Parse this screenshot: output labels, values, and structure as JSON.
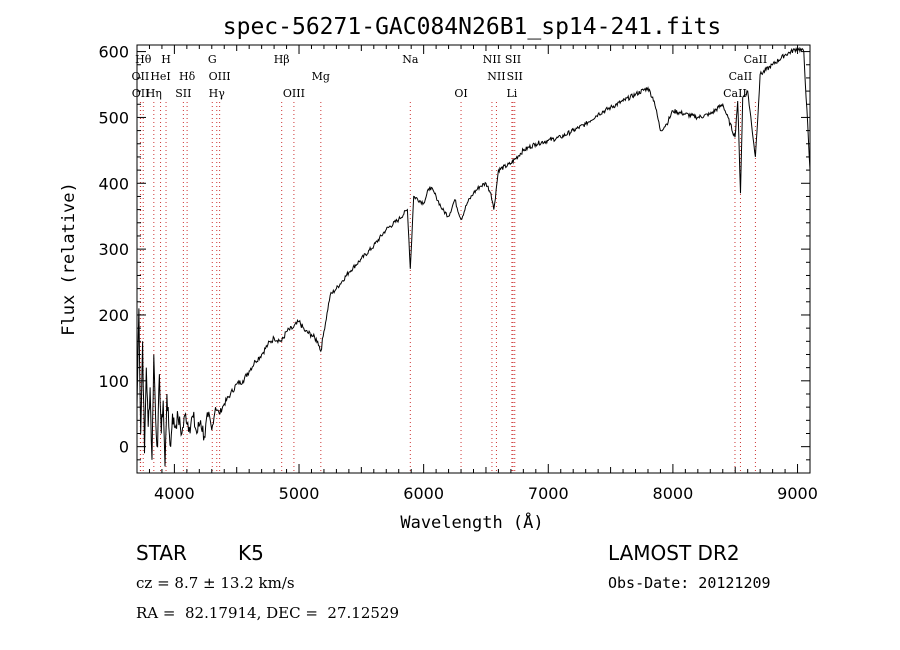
{
  "chart_data": {
    "type": "line",
    "title": "spec-56271-GAC084N26B1_sp14-241.fits",
    "xlabel": "Wavelength (Å)",
    "ylabel": "Flux (relative)",
    "xlim": [
      3700,
      9100
    ],
    "ylim": [
      -40,
      610
    ],
    "x_ticks": [
      4000,
      5000,
      6000,
      7000,
      8000,
      9000
    ],
    "y_ticks": [
      0,
      100,
      200,
      300,
      400,
      500,
      600
    ],
    "grid": false,
    "series": [
      {
        "points": [
          [
            3700,
            60
          ],
          [
            3715,
            210
          ],
          [
            3730,
            20
          ],
          [
            3745,
            160
          ],
          [
            3760,
            -10
          ],
          [
            3775,
            120
          ],
          [
            3790,
            30
          ],
          [
            3805,
            90
          ],
          [
            3820,
            -20
          ],
          [
            3835,
            140
          ],
          [
            3850,
            40
          ],
          [
            3865,
            0
          ],
          [
            3880,
            110
          ],
          [
            3895,
            20
          ],
          [
            3910,
            70
          ],
          [
            3925,
            -30
          ],
          [
            3940,
            80
          ],
          [
            3955,
            30
          ],
          [
            3970,
            0
          ],
          [
            3985,
            50
          ],
          [
            4000,
            30
          ],
          [
            4030,
            45
          ],
          [
            4060,
            20
          ],
          [
            4090,
            50
          ],
          [
            4120,
            30
          ],
          [
            4150,
            45
          ],
          [
            4180,
            20
          ],
          [
            4210,
            40
          ],
          [
            4240,
            15
          ],
          [
            4270,
            45
          ],
          [
            4300,
            25
          ],
          [
            4330,
            60
          ],
          [
            4360,
            50
          ],
          [
            4400,
            65
          ],
          [
            4450,
            80
          ],
          [
            4500,
            95
          ],
          [
            4550,
            100
          ],
          [
            4600,
            115
          ],
          [
            4650,
            130
          ],
          [
            4700,
            140
          ],
          [
            4750,
            155
          ],
          [
            4800,
            165
          ],
          [
            4861,
            160
          ],
          [
            4900,
            175
          ],
          [
            4950,
            180
          ],
          [
            5000,
            190
          ],
          [
            5050,
            175
          ],
          [
            5100,
            170
          ],
          [
            5150,
            160
          ],
          [
            5175,
            145
          ],
          [
            5200,
            175
          ],
          [
            5250,
            230
          ],
          [
            5300,
            240
          ],
          [
            5400,
            265
          ],
          [
            5500,
            285
          ],
          [
            5600,
            305
          ],
          [
            5700,
            330
          ],
          [
            5800,
            345
          ],
          [
            5870,
            360
          ],
          [
            5893,
            270
          ],
          [
            5920,
            380
          ],
          [
            6000,
            370
          ],
          [
            6050,
            395
          ],
          [
            6100,
            380
          ],
          [
            6150,
            360
          ],
          [
            6200,
            350
          ],
          [
            6250,
            375
          ],
          [
            6300,
            345
          ],
          [
            6350,
            370
          ],
          [
            6400,
            385
          ],
          [
            6450,
            395
          ],
          [
            6500,
            400
          ],
          [
            6540,
            385
          ],
          [
            6563,
            360
          ],
          [
            6600,
            420
          ],
          [
            6700,
            430
          ],
          [
            6800,
            450
          ],
          [
            6900,
            460
          ],
          [
            7000,
            465
          ],
          [
            7100,
            470
          ],
          [
            7200,
            480
          ],
          [
            7300,
            490
          ],
          [
            7400,
            505
          ],
          [
            7500,
            515
          ],
          [
            7600,
            525
          ],
          [
            7700,
            535
          ],
          [
            7800,
            545
          ],
          [
            7850,
            525
          ],
          [
            7900,
            480
          ],
          [
            7950,
            490
          ],
          [
            8000,
            510
          ],
          [
            8100,
            505
          ],
          [
            8200,
            500
          ],
          [
            8300,
            505
          ],
          [
            8400,
            520
          ],
          [
            8498,
            470
          ],
          [
            8520,
            525
          ],
          [
            8542,
            385
          ],
          [
            8560,
            530
          ],
          [
            8600,
            540
          ],
          [
            8662,
            440
          ],
          [
            8700,
            565
          ],
          [
            8800,
            580
          ],
          [
            8900,
            595
          ],
          [
            9000,
            605
          ],
          [
            9050,
            600
          ],
          [
            9100,
            420
          ]
        ]
      }
    ],
    "line_markers": [
      {
        "label": "Hθ",
        "x": 3750,
        "row": 1
      },
      {
        "label": "OII",
        "x": 3727,
        "row": 2
      },
      {
        "label": "OII",
        "x": 3729,
        "row": 3
      },
      {
        "label": "H",
        "x": 3933,
        "row": 1
      },
      {
        "label": "HeI",
        "x": 3889,
        "row": 2
      },
      {
        "label": "Hη",
        "x": 3835,
        "row": 3
      },
      {
        "label": "Hδ",
        "x": 4102,
        "row": 2
      },
      {
        "label": "SII",
        "x": 4072,
        "row": 3
      },
      {
        "label": "G",
        "x": 4304,
        "row": 1
      },
      {
        "label": "OIII",
        "x": 4363,
        "row": 2
      },
      {
        "label": "Hγ",
        "x": 4340,
        "row": 3
      },
      {
        "label": "Hβ",
        "x": 4861,
        "row": 1
      },
      {
        "label": "OIII",
        "x": 4959,
        "row": 3
      },
      {
        "label": "Mg",
        "x": 5175,
        "row": 2
      },
      {
        "label": "Na",
        "x": 5893,
        "row": 1
      },
      {
        "label": "OI",
        "x": 6300,
        "row": 3
      },
      {
        "label": "NII",
        "x": 6548,
        "row": 1
      },
      {
        "label": "SII",
        "x": 6717,
        "row": 1
      },
      {
        "label": "NII",
        "x": 6584,
        "row": 2
      },
      {
        "label": "SII",
        "x": 6731,
        "row": 2
      },
      {
        "label": "Li",
        "x": 6708,
        "row": 3
      },
      {
        "label": "CaII",
        "x": 8662,
        "row": 1
      },
      {
        "label": "CaII",
        "x": 8542,
        "row": 2
      },
      {
        "label": "CaII",
        "x": 8498,
        "row": 3
      }
    ]
  },
  "info": {
    "object_class": "STAR",
    "subclass": "K5",
    "survey": "LAMOST DR2",
    "cz": "cz = 8.7 ± 13.2 km/s",
    "obs_date": "Obs-Date: 20121209",
    "coords": "RA =  82.17914, DEC =  27.12529"
  }
}
